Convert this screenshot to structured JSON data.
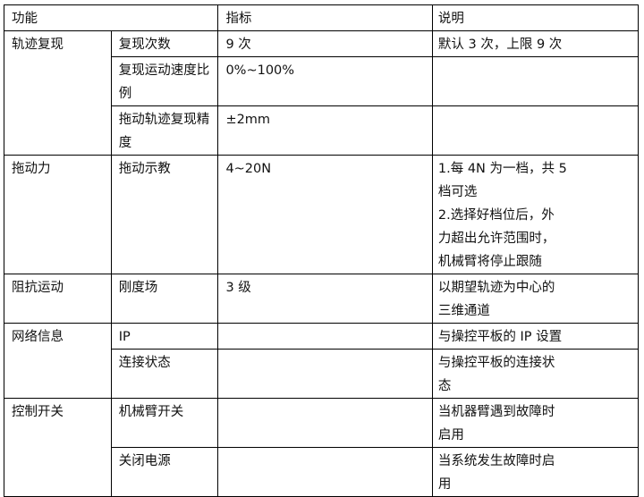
{
  "header": {
    "function": "功能",
    "metric": "指标",
    "description": "说明"
  },
  "groups": [
    {
      "name": "轨迹复现",
      "rows": [
        {
          "item": "复现次数",
          "metric": "9 次",
          "description": [
            "默认 3 次，上限 9 次"
          ]
        },
        {
          "item": "复现运动速度比例",
          "metric": "0%~100%",
          "description": []
        },
        {
          "item": "拖动轨迹复现精度",
          "metric": "±2mm",
          "description": []
        }
      ]
    },
    {
      "name": "拖动力",
      "rows": [
        {
          "item": "拖动示教",
          "metric": "4~20N",
          "description": [
            "1.每 4N 为一档，共 5",
            "档可选",
            "2.选择好档位后，外",
            "力超出允许范围时，",
            "机械臂将停止跟随"
          ]
        }
      ]
    },
    {
      "name": "阻抗运动",
      "rows": [
        {
          "item": "刚度场",
          "metric": "3 级",
          "description": [
            "以期望轨迹为中心的",
            "三维通道"
          ]
        }
      ]
    },
    {
      "name": "网络信息",
      "rows": [
        {
          "item": "IP",
          "metric": "",
          "description": [
            "与操控平板的 IP 设置"
          ]
        },
        {
          "item": "连接状态",
          "metric": "",
          "description": [
            "与操控平板的连接状",
            "态"
          ]
        }
      ]
    },
    {
      "name": "控制开关",
      "rows": [
        {
          "item": "机械臂开关",
          "metric": "",
          "description": [
            "当机器臂遇到故障时",
            "启用"
          ]
        },
        {
          "item": "关闭电源",
          "metric": "",
          "description": [
            "当系统发生故障时启",
            "用"
          ]
        }
      ]
    }
  ]
}
